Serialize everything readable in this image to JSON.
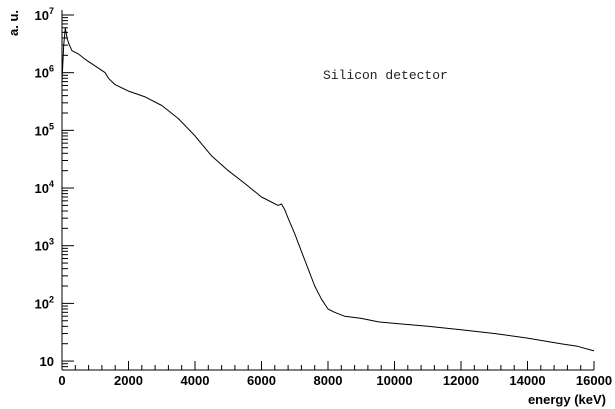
{
  "chart_data": {
    "type": "line",
    "xlabel": "energy (keV)",
    "ylabel": "a. u.",
    "annotation": "Silicon detector",
    "xscale": "linear",
    "yscale": "log",
    "xlim": [
      0,
      16000
    ],
    "ylim": [
      7,
      10000000
    ],
    "grid": false,
    "x_ticks": [
      0,
      2000,
      4000,
      6000,
      8000,
      10000,
      12000,
      14000,
      16000
    ],
    "x_tick_labels": [
      "0",
      "2000",
      "4000",
      "6000",
      "8000",
      "10000",
      "12000",
      "14000",
      "16000"
    ],
    "y_ticks": [
      10,
      100,
      1000,
      10000,
      100000,
      1000000,
      10000000
    ],
    "y_tick_labels": [
      {
        "base": "10",
        "exp": ""
      },
      {
        "base": "10",
        "exp": "2"
      },
      {
        "base": "10",
        "exp": "3"
      },
      {
        "base": "10",
        "exp": "4"
      },
      {
        "base": "10",
        "exp": "5"
      },
      {
        "base": "10",
        "exp": "6"
      },
      {
        "base": "10",
        "exp": "7"
      }
    ],
    "series": [
      {
        "color": "#000000",
        "x": [
          0,
          50,
          100,
          150,
          200,
          300,
          500,
          700,
          1000,
          1300,
          1400,
          1500,
          1600,
          2000,
          2500,
          3000,
          3500,
          4000,
          4500,
          5000,
          5500,
          6000,
          6500,
          6600,
          6700,
          6800,
          7000,
          7200,
          7400,
          7600,
          7800,
          8000,
          8200,
          8500,
          9000,
          9500,
          10000,
          11000,
          12000,
          13000,
          14000,
          15000,
          15500,
          16000
        ],
        "y": [
          700000,
          3000000,
          6000000,
          4000000,
          3200000,
          2400000,
          2100000,
          1700000,
          1300000,
          1000000,
          800000,
          700000,
          620000,
          480000,
          380000,
          270000,
          160000,
          80000,
          36000,
          20000,
          12000,
          7000,
          5000,
          5300,
          4200,
          3000,
          1600,
          800,
          400,
          200,
          120,
          80,
          70,
          60,
          55,
          48,
          45,
          40,
          35,
          30,
          25,
          20,
          18,
          15
        ]
      }
    ]
  }
}
